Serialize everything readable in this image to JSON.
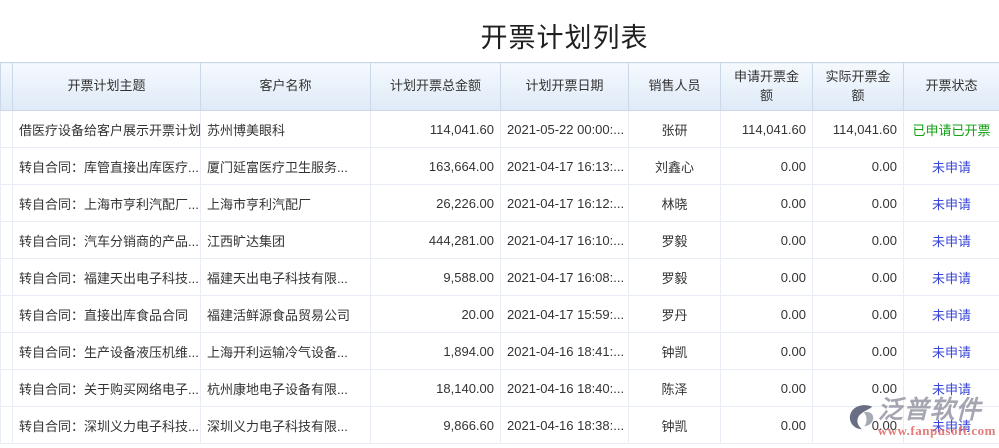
{
  "page": {
    "title": "开票计划列表"
  },
  "watermark": {
    "brand": "泛普软件",
    "url": "www.fanpusoft.com"
  },
  "table": {
    "columns": [
      {
        "key": "subject",
        "label": "开票计划主题"
      },
      {
        "key": "customer",
        "label": "客户名称"
      },
      {
        "key": "planned_total",
        "label": "计划开票总金额"
      },
      {
        "key": "plan_date",
        "label": "计划开票日期"
      },
      {
        "key": "salesperson",
        "label": "销售人员"
      },
      {
        "key": "applied_amount",
        "label": "申请开票金额"
      },
      {
        "key": "actual_amount",
        "label": "实际开票金额"
      },
      {
        "key": "status",
        "label": "开票状态"
      }
    ],
    "status_colors": {
      "applied": "#11a011",
      "unapplied": "#3a46d7"
    },
    "rows": [
      {
        "subject": "借医疗设备给客户展示开票计划",
        "customer": "苏州博美眼科",
        "planned_total": "114,041.60",
        "plan_date": "2021-05-22 00:00:...",
        "salesperson": "张研",
        "applied_amount": "114,041.60",
        "actual_amount": "114,041.60",
        "status": "已申请已开票",
        "status_type": "applied"
      },
      {
        "subject": "转自合同：库管直接出库医疗...",
        "customer": "厦门延富医疗卫生服务...",
        "planned_total": "163,664.00",
        "plan_date": "2021-04-17 16:13:...",
        "salesperson": "刘鑫心",
        "applied_amount": "0.00",
        "actual_amount": "0.00",
        "status": "未申请",
        "status_type": "unapplied"
      },
      {
        "subject": "转自合同：上海市亨利汽配厂...",
        "customer": "上海市亨利汽配厂",
        "planned_total": "26,226.00",
        "plan_date": "2021-04-17 16:12:...",
        "salesperson": "林晓",
        "applied_amount": "0.00",
        "actual_amount": "0.00",
        "status": "未申请",
        "status_type": "unapplied"
      },
      {
        "subject": "转自合同：汽车分销商的产品...",
        "customer": "江西旷达集团",
        "planned_total": "444,281.00",
        "plan_date": "2021-04-17 16:10:...",
        "salesperson": "罗毅",
        "applied_amount": "0.00",
        "actual_amount": "0.00",
        "status": "未申请",
        "status_type": "unapplied"
      },
      {
        "subject": "转自合同：福建天出电子科技...",
        "customer": "福建天出电子科技有限...",
        "planned_total": "9,588.00",
        "plan_date": "2021-04-17 16:08:...",
        "salesperson": "罗毅",
        "applied_amount": "0.00",
        "actual_amount": "0.00",
        "status": "未申请",
        "status_type": "unapplied"
      },
      {
        "subject": "转自合同：直接出库食品合同",
        "customer": "福建活鲜源食品贸易公司",
        "planned_total": "20.00",
        "plan_date": "2021-04-17 15:59:...",
        "salesperson": "罗丹",
        "applied_amount": "0.00",
        "actual_amount": "0.00",
        "status": "未申请",
        "status_type": "unapplied"
      },
      {
        "subject": "转自合同：生产设备液压机维...",
        "customer": "上海开利运输冷气设备...",
        "planned_total": "1,894.00",
        "plan_date": "2021-04-16 18:41:...",
        "salesperson": "钟凯",
        "applied_amount": "0.00",
        "actual_amount": "0.00",
        "status": "未申请",
        "status_type": "unapplied"
      },
      {
        "subject": "转自合同：关于购买网络电子...",
        "customer": "杭州康地电子设备有限...",
        "planned_total": "18,140.00",
        "plan_date": "2021-04-16 18:40:...",
        "salesperson": "陈泽",
        "applied_amount": "0.00",
        "actual_amount": "0.00",
        "status": "未申请",
        "status_type": "unapplied"
      },
      {
        "subject": "转自合同：深圳义力电子科技...",
        "customer": "深圳义力电子科技有限...",
        "planned_total": "9,866.60",
        "plan_date": "2021-04-16 18:38:...",
        "salesperson": "钟凯",
        "applied_amount": "0.00",
        "actual_amount": "0.00",
        "status": "未申请",
        "status_type": "unapplied"
      }
    ]
  }
}
